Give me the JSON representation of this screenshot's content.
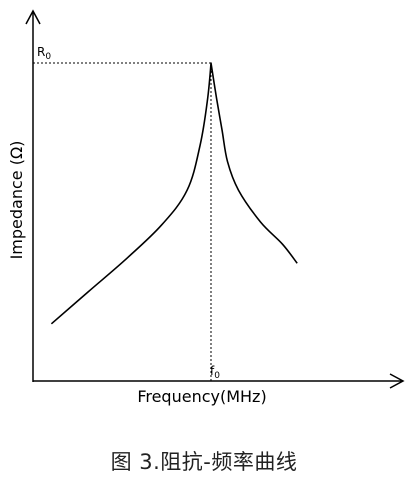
{
  "chart_data": {
    "type": "line",
    "xlabel": "Frequency(MHz)",
    "ylabel": "Impedance (Ω)",
    "peak_y_label": "R",
    "peak_y_sub": "0",
    "peak_x_label": "f",
    "peak_x_sub": "0",
    "grid": false,
    "legend": "none",
    "line_color": "#000000",
    "series": [
      {
        "points": [
          [
            0.05,
            0.18
          ],
          [
            0.15,
            0.28
          ],
          [
            0.25,
            0.38
          ],
          [
            0.35,
            0.49
          ],
          [
            0.42,
            0.6
          ],
          [
            0.455,
            0.74
          ],
          [
            0.475,
            0.88
          ],
          [
            0.485,
            1.0
          ],
          [
            0.5,
            0.89
          ],
          [
            0.515,
            0.79
          ],
          [
            0.53,
            0.69
          ],
          [
            0.56,
            0.6
          ],
          [
            0.62,
            0.5
          ],
          [
            0.68,
            0.43
          ],
          [
            0.72,
            0.37
          ]
        ]
      }
    ]
  },
  "caption": "图 3.阻抗-频率曲线"
}
